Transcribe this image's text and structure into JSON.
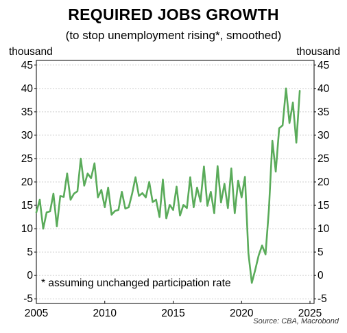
{
  "chart_data": {
    "type": "line",
    "title": "REQUIRED JOBS GROWTH",
    "subtitle": "(to stop unemployment rising*, smoothed)",
    "ylabel_left": "thousand",
    "ylabel_right": "thousand",
    "annotation": "*  assuming unchanged participation rate",
    "source": "Source: CBA, Macrobond",
    "xlim": [
      2005,
      2025.3
    ],
    "ylim": [
      -6,
      46
    ],
    "x_ticks": [
      2005,
      2010,
      2015,
      2020,
      2025
    ],
    "y_ticks": [
      -5,
      0,
      5,
      10,
      15,
      20,
      25,
      30,
      35,
      40,
      45
    ],
    "grid": true,
    "line_color": "#5aab5a",
    "series": [
      {
        "x": [
          2005.0,
          2005.25,
          2005.5,
          2005.75,
          2006.0,
          2006.25,
          2006.5,
          2006.75,
          2007.0,
          2007.25,
          2007.5,
          2007.75,
          2008.0,
          2008.25,
          2008.5,
          2008.75,
          2009.0,
          2009.25,
          2009.5,
          2009.75,
          2010.0,
          2010.25,
          2010.5,
          2010.75,
          2011.0,
          2011.25,
          2011.5,
          2011.75,
          2012.0,
          2012.25,
          2012.5,
          2012.75,
          2013.0,
          2013.25,
          2013.5,
          2013.75,
          2014.0,
          2014.25,
          2014.5,
          2014.75,
          2015.0,
          2015.25,
          2015.5,
          2015.75,
          2016.0,
          2016.25,
          2016.5,
          2016.75,
          2017.0,
          2017.25,
          2017.5,
          2017.75,
          2018.0,
          2018.25,
          2018.5,
          2018.75,
          2019.0,
          2019.25,
          2019.5,
          2019.75,
          2020.0,
          2020.25,
          2020.5,
          2020.75,
          2021.0,
          2021.25,
          2021.5,
          2021.75,
          2022.0,
          2022.25,
          2022.5,
          2022.75,
          2023.0,
          2023.25,
          2023.5,
          2023.75,
          2024.0,
          2024.25
        ],
        "y": [
          13.5,
          16.2,
          10.0,
          13.5,
          13.7,
          17.5,
          10.5,
          17.0,
          16.8,
          21.8,
          16.2,
          17.5,
          18.0,
          25.0,
          19.2,
          21.8,
          20.8,
          24.0,
          16.7,
          18.3,
          14.6,
          18.8,
          13.0,
          13.8,
          14.0,
          17.9,
          14.3,
          14.6,
          17.5,
          21.0,
          17.0,
          17.6,
          16.7,
          20.0,
          15.7,
          16.2,
          12.5,
          20.5,
          12.2,
          15.1,
          14.0,
          19.0,
          12.8,
          15.1,
          14.4,
          21.0,
          14.6,
          18.8,
          15.8,
          23.3,
          14.9,
          17.9,
          13.3,
          23.4,
          15.6,
          19.6,
          14.4,
          22.9,
          13.3,
          20.3,
          16.7,
          21.1,
          4.8,
          -1.6,
          1.2,
          4.3,
          6.4,
          4.5,
          14.3,
          28.8,
          22.2,
          31.5,
          32.1,
          40.0,
          32.6,
          37.0,
          28.4,
          39.5
        ]
      }
    ]
  }
}
